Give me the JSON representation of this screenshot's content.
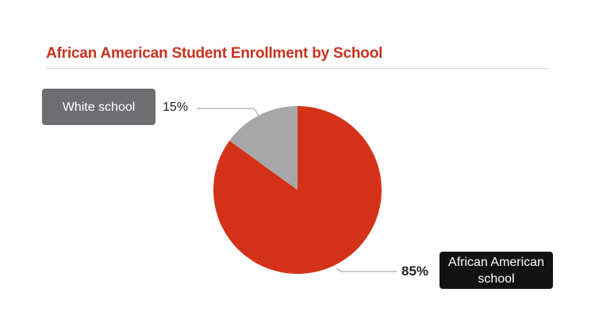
{
  "chart_data": {
    "type": "pie",
    "title": "African American Student Enrollment by School",
    "slices": [
      {
        "label": "African American school",
        "value": 85,
        "value_label": "85%",
        "color": "#d43218"
      },
      {
        "label": "White school",
        "value": 15,
        "value_label": "15%",
        "color": "#a8a7a8"
      }
    ],
    "legend": "callout labels"
  }
}
